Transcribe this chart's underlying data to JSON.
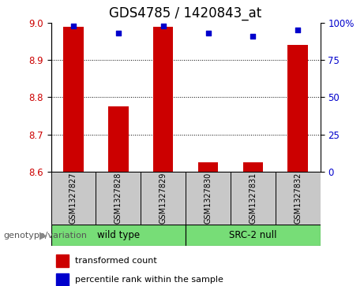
{
  "title": "GDS4785 / 1420843_at",
  "samples": [
    "GSM1327827",
    "GSM1327828",
    "GSM1327829",
    "GSM1327830",
    "GSM1327831",
    "GSM1327832"
  ],
  "group_ranges": [
    [
      0,
      2,
      "wild type"
    ],
    [
      3,
      5,
      "SRC-2 null"
    ]
  ],
  "bar_values": [
    8.99,
    8.775,
    8.99,
    8.625,
    8.625,
    8.94
  ],
  "dot_values": [
    98,
    93,
    98,
    93,
    91,
    95
  ],
  "ylim_left": [
    8.6,
    9.0
  ],
  "ylim_right": [
    0,
    100
  ],
  "yticks_left": [
    8.6,
    8.7,
    8.8,
    8.9,
    9.0
  ],
  "yticks_right": [
    0,
    25,
    50,
    75,
    100
  ],
  "ytick_labels_right": [
    "0",
    "25",
    "50",
    "75",
    "100%"
  ],
  "bar_color": "#CC0000",
  "dot_color": "#0000CC",
  "bar_bottom": 8.6,
  "grid_lines": [
    8.7,
    8.8,
    8.9
  ],
  "legend_items": [
    "transformed count",
    "percentile rank within the sample"
  ],
  "xlabel_left": "genotype/variation",
  "sample_box_color": "#C8C8C8",
  "green_color": "#77DD77",
  "title_fontsize": 12,
  "tick_fontsize": 8.5,
  "label_fontsize": 8.5,
  "bar_width": 0.45
}
